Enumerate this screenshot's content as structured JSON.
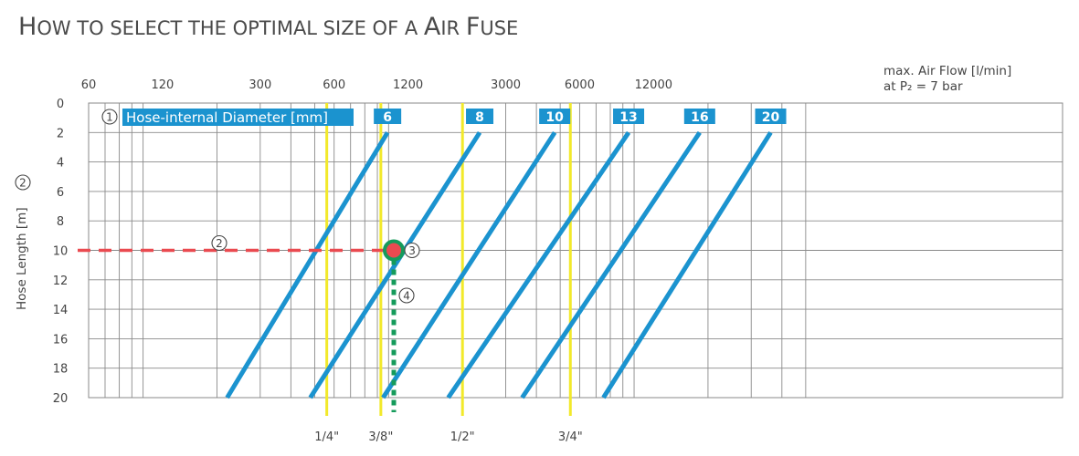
{
  "title": {
    "first": "H",
    "rest": "OW TO SELECT THE OPTIMAL SIZE OF A ",
    "word_a": "A",
    "word_a_rest": "IR ",
    "word_f": "F",
    "word_f_rest": "USE"
  },
  "colors": {
    "hose_line": "#1b93cf",
    "fitting_line": "#f2e92a",
    "grid": "#8a8a8a",
    "length_guide": "#ea4a50",
    "flow_guide": "#159b5b",
    "marker_fill": "#ea4a50",
    "marker_ring": "#159b5b",
    "text": "#444444"
  },
  "chart_data": {
    "type": "line",
    "x_axis": {
      "label_lines": [
        "max. Air Flow [l/min]",
        "at P₂ = 7 bar"
      ],
      "scale": "log",
      "tick_labels": [
        "60",
        "120",
        "300",
        "600",
        "1200",
        "3000",
        "6000",
        "12000"
      ]
    },
    "y_axis": {
      "label": "Hose  Length [m]",
      "step_marker": "2",
      "ticks": [
        0,
        2,
        4,
        6,
        8,
        10,
        12,
        14,
        16,
        18,
        20
      ],
      "reversed": true,
      "ylim": [
        0,
        20
      ]
    },
    "legend_label": "Hose-internal Diameter [mm]",
    "legend_step": "1",
    "series": [
      {
        "name": "6",
        "points": [
          [
            220,
            20
          ],
          [
            990,
            2
          ]
        ]
      },
      {
        "name": "8",
        "points": [
          [
            480,
            20
          ],
          [
            2350,
            2
          ]
        ]
      },
      {
        "name": "10",
        "points": [
          [
            950,
            20
          ],
          [
            4750,
            2
          ]
        ]
      },
      {
        "name": "13",
        "points": [
          [
            1750,
            20
          ],
          [
            9500,
            2
          ]
        ]
      },
      {
        "name": "16",
        "points": [
          [
            3500,
            20
          ],
          [
            18500,
            2
          ]
        ]
      },
      {
        "name": "20",
        "points": [
          [
            7500,
            20
          ],
          [
            36000,
            2
          ]
        ]
      }
    ],
    "fittings": [
      {
        "name": "1/4\"",
        "flow": 560
      },
      {
        "name": "3/8\"",
        "flow": 930
      },
      {
        "name": "1/2\"",
        "flow": 2000
      },
      {
        "name": "3/4\"",
        "flow": 5500
      }
    ],
    "example": {
      "hose_length": 10,
      "flow": 1050,
      "length_step": "2",
      "point_step": "3",
      "flow_step": "4"
    }
  }
}
